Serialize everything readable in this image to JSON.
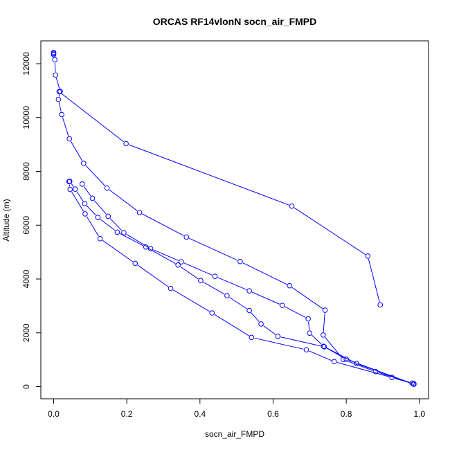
{
  "chart_data": {
    "type": "line",
    "title": "ORCAS RF14vlonN socn_air_FMPD",
    "xlabel": "socn_air_FMPD",
    "ylabel": "Altitude (m)",
    "xlim": [
      -0.035,
      1.025
    ],
    "ylim": [
      -450,
      12850
    ],
    "x_ticks": [
      0.0,
      0.2,
      0.4,
      0.6,
      0.8,
      1.0
    ],
    "x_tick_labels": [
      "0.0",
      "0.2",
      "0.4",
      "0.6",
      "0.8",
      "1.0"
    ],
    "y_ticks": [
      0,
      2000,
      4000,
      6000,
      8000,
      10000,
      12000
    ],
    "y_tick_labels": [
      "0",
      "2000",
      "4000",
      "6000",
      "8000",
      "10000",
      "12000"
    ],
    "marker": "open-circle",
    "grid": false,
    "series": [
      {
        "color": "#0000ff",
        "points": [
          [
            0.0,
            12420
          ],
          [
            0.0,
            12380
          ],
          [
            0.0,
            12340
          ],
          [
            0.003,
            12150
          ],
          [
            0.005,
            11580
          ],
          [
            0.018,
            10970
          ],
          [
            0.013,
            10670
          ],
          [
            0.022,
            10110
          ],
          [
            0.043,
            9210
          ],
          [
            0.082,
            8300
          ],
          [
            0.146,
            7380
          ],
          [
            0.235,
            6470
          ],
          [
            0.363,
            5560
          ],
          [
            0.51,
            4650
          ],
          [
            0.645,
            3750
          ],
          [
            0.742,
            2840
          ],
          [
            0.737,
            1920
          ],
          [
            0.792,
            1010
          ],
          [
            0.88,
            560
          ],
          [
            0.98,
            130
          ],
          [
            0.985,
            110
          ]
        ]
      },
      {
        "color": "#0000ff",
        "points": [
          [
            0.985,
            100
          ],
          [
            0.925,
            340
          ],
          [
            0.767,
            930
          ],
          [
            0.691,
            1370
          ],
          [
            0.541,
            1830
          ],
          [
            0.433,
            2740
          ],
          [
            0.32,
            3650
          ],
          [
            0.223,
            4580
          ],
          [
            0.127,
            5500
          ],
          [
            0.086,
            6420
          ],
          [
            0.045,
            7330
          ],
          [
            0.042,
            7620
          ]
        ]
      },
      {
        "color": "#0000ff",
        "points": [
          [
            0.044,
            7630
          ],
          [
            0.059,
            7340
          ],
          [
            0.085,
            6800
          ],
          [
            0.121,
            6290
          ],
          [
            0.174,
            5740
          ],
          [
            0.252,
            5190
          ],
          [
            0.34,
            4520
          ],
          [
            0.402,
            3940
          ],
          [
            0.474,
            3380
          ],
          [
            0.535,
            2830
          ],
          [
            0.567,
            2330
          ],
          [
            0.613,
            1870
          ],
          [
            0.74,
            1480
          ],
          [
            0.8,
            1020
          ],
          [
            0.985,
            90
          ]
        ]
      },
      {
        "color": "#0000ff",
        "points": [
          [
            0.984,
            100
          ],
          [
            0.828,
            860
          ],
          [
            0.738,
            1500
          ],
          [
            0.7,
            1990
          ],
          [
            0.696,
            2520
          ],
          [
            0.625,
            3020
          ],
          [
            0.535,
            3560
          ],
          [
            0.441,
            4100
          ],
          [
            0.349,
            4640
          ],
          [
            0.265,
            5130
          ],
          [
            0.192,
            5720
          ],
          [
            0.149,
            6330
          ],
          [
            0.106,
            7000
          ],
          [
            0.078,
            7530
          ]
        ]
      },
      {
        "color": "#0000ff",
        "points": [
          [
            0.015,
            10960
          ],
          [
            0.198,
            9030
          ],
          [
            0.651,
            6710
          ],
          [
            0.859,
            4850
          ],
          [
            0.893,
            3040
          ]
        ]
      }
    ]
  }
}
